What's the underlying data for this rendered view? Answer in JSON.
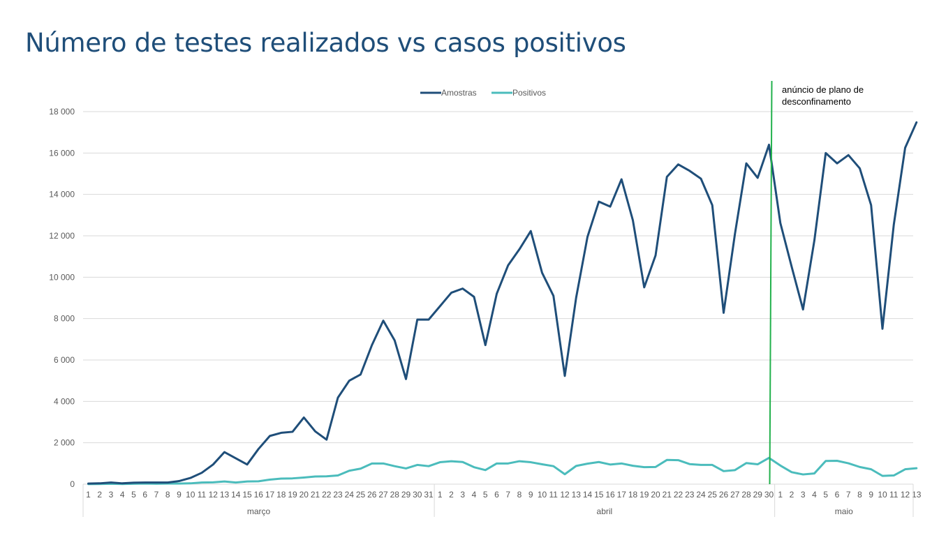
{
  "title": "Número de testes realizados vs casos positivos",
  "chart_data": {
    "type": "line",
    "x": [
      "1",
      "2",
      "3",
      "4",
      "5",
      "6",
      "7",
      "8",
      "9",
      "10",
      "11",
      "12",
      "13",
      "14",
      "15",
      "16",
      "17",
      "18",
      "19",
      "20",
      "21",
      "22",
      "23",
      "24",
      "25",
      "26",
      "27",
      "28",
      "29",
      "30",
      "31",
      "1",
      "2",
      "3",
      "4",
      "5",
      "6",
      "7",
      "8",
      "9",
      "10",
      "11",
      "12",
      "13",
      "14",
      "15",
      "16",
      "17",
      "18",
      "19",
      "20",
      "21",
      "22",
      "23",
      "24",
      "25",
      "26",
      "27",
      "28",
      "29",
      "30",
      "1",
      "2",
      "3",
      "4",
      "5",
      "6",
      "7",
      "8",
      "9",
      "10",
      "11",
      "12",
      "13"
    ],
    "months": [
      {
        "name": "março",
        "days": 31
      },
      {
        "name": "abril",
        "days": 30
      },
      {
        "name": "maio",
        "days": 13
      }
    ],
    "series": [
      {
        "name": "Amostras",
        "color": "#1f4e79",
        "values": [
          30,
          40,
          80,
          40,
          70,
          80,
          80,
          80,
          150,
          300,
          550,
          950,
          1550,
          1250,
          950,
          1700,
          2330,
          2480,
          2530,
          3220,
          2550,
          2150,
          4180,
          5000,
          5300,
          6720,
          7900,
          6950,
          5080,
          7950,
          7950,
          8600,
          9250,
          9450,
          9050,
          6720,
          9200,
          10570,
          11350,
          12230,
          10210,
          9100,
          5230,
          9010,
          11950,
          13650,
          13410,
          14730,
          12750,
          9510,
          11050,
          14850,
          15450,
          15140,
          14760,
          13480,
          8280,
          12100,
          15500,
          14800,
          16400,
          12620,
          10500,
          8440,
          11780,
          16000,
          15500,
          15900,
          15260,
          13480,
          7510,
          12540,
          16250,
          17480
        ]
      },
      {
        "name": "Positivos",
        "color": "#4bbcbc",
        "values": [
          5,
          10,
          20,
          10,
          20,
          30,
          20,
          30,
          30,
          40,
          80,
          90,
          130,
          80,
          130,
          140,
          220,
          270,
          280,
          320,
          370,
          380,
          420,
          650,
          750,
          1000,
          1000,
          870,
          760,
          930,
          870,
          1060,
          1110,
          1070,
          820,
          680,
          1000,
          1000,
          1110,
          1060,
          960,
          870,
          480,
          880,
          990,
          1070,
          950,
          1000,
          890,
          820,
          830,
          1170,
          1160,
          970,
          930,
          930,
          630,
          680,
          1020,
          960,
          1270,
          900,
          580,
          470,
          520,
          1120,
          1130,
          1010,
          830,
          720,
          400,
          420,
          720,
          770
        ]
      }
    ],
    "ylim": [
      0,
      18000
    ],
    "yticks": [
      0,
      2000,
      4000,
      6000,
      8000,
      10000,
      12000,
      14000,
      16000,
      18000
    ],
    "ytick_labels": [
      "0",
      "2 000",
      "4 000",
      "6 000",
      "8 000",
      "10 000",
      "12 000",
      "14 000",
      "16 000",
      "18 000"
    ],
    "grid": true,
    "legend_position": "top-center",
    "annotation": {
      "text_lines": [
        "anúncio de plano de",
        "desconfinamento"
      ],
      "line_color": "#22b14c",
      "at_month_index": 1,
      "at_day": 30
    }
  }
}
